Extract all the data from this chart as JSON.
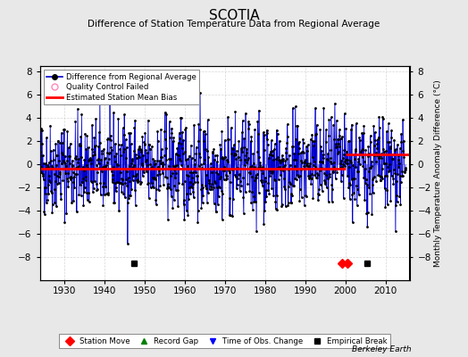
{
  "title": "SCOTIA",
  "subtitle": "Difference of Station Temperature Data from Regional Average",
  "ylabel_right": "Monthly Temperature Anomaly Difference (°C)",
  "xlim": [
    1924,
    2016
  ],
  "ylim": [
    -10,
    8.5
  ],
  "yticks": [
    -8,
    -6,
    -4,
    -2,
    0,
    2,
    4,
    6,
    8
  ],
  "xticks": [
    1930,
    1940,
    1950,
    1960,
    1970,
    1980,
    1990,
    2000,
    2010
  ],
  "mean_bias1": -0.35,
  "bias1_start": 1924,
  "bias1_end": 2000,
  "mean_bias2": 0.9,
  "bias2_start": 2000,
  "bias2_end": 2016,
  "station_moves": [
    1999.2,
    2000.5
  ],
  "empirical_breaks": [
    1947.5,
    2005.5
  ],
  "background_color": "#e8e8e8",
  "plot_bg_color": "#ffffff",
  "line_color": "#0000cc",
  "fill_color": "#8888ff",
  "bias_color": "#ff0000",
  "marker_color": "#000000",
  "seed": 42,
  "figwidth": 5.24,
  "figheight": 4.0,
  "dpi": 100
}
